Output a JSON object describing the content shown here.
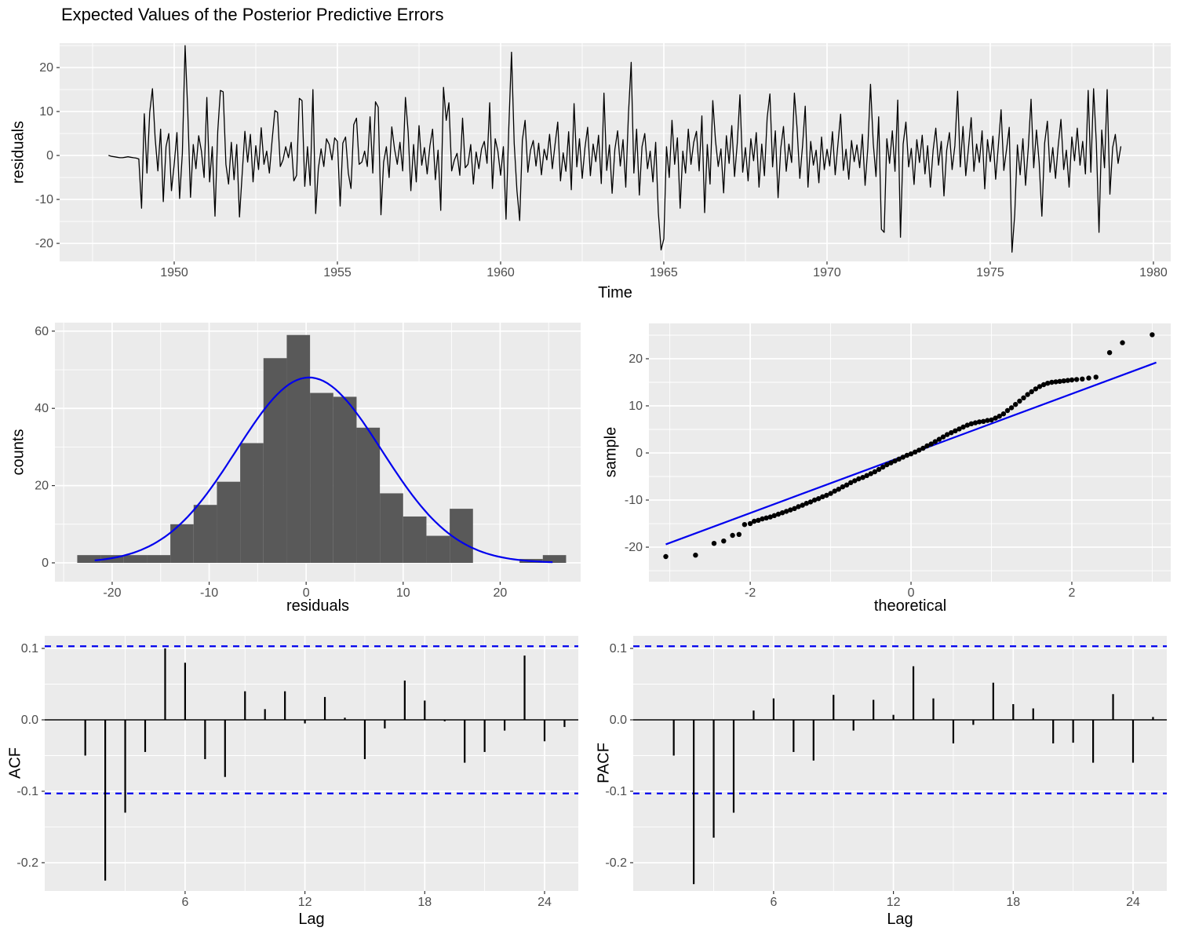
{
  "title": "Expected Values of the Posterior Predictive Errors",
  "colors": {
    "panel_bg": "#EBEBEB",
    "grid": "#FFFFFF",
    "series_line": "#000000",
    "bar_fill": "#595959",
    "blue": "#0000EE",
    "axis_text": "#4D4D4D",
    "tick_mark": "#333333",
    "label_text": "#000000"
  },
  "chart_data": [
    {
      "id": "ts",
      "type": "line",
      "title": "Expected Values of the Posterior Predictive Errors",
      "xlabel": "Time",
      "ylabel": "residuals",
      "xlim": [
        1946.49,
        1980.53
      ],
      "ylim": [
        -24.1,
        25.55
      ],
      "x_ticks": {
        "values": [
          1950,
          1955,
          1960,
          1965,
          1970,
          1975,
          1980
        ],
        "labels": [
          "1950",
          "1955",
          "1960",
          "1965",
          "1970",
          "1975",
          "1980"
        ]
      },
      "y_ticks": {
        "values": [
          -20,
          -10,
          0,
          10,
          20
        ],
        "labels": [
          "-20",
          "-10",
          "0",
          "10",
          "20"
        ]
      },
      "start": 1948,
      "frequency": 12,
      "values": [
        0.0,
        -0.2,
        -0.3,
        -0.4,
        -0.5,
        -0.5,
        -0.4,
        -0.3,
        -0.4,
        -0.5,
        -0.6,
        -0.8,
        -12.0,
        9.5,
        -4.0,
        9.8,
        15.2,
        4.0,
        -3.5,
        6.0,
        -10.5,
        2.0,
        5.0,
        -8.0,
        -2.0,
        5.2,
        -9.8,
        0.5,
        25.0,
        10.0,
        -9.5,
        2.5,
        -3.0,
        4.5,
        1.0,
        -5.0,
        13.2,
        -6.0,
        2.0,
        -13.8,
        5.5,
        14.8,
        14.5,
        -2.0,
        -6.5,
        3.0,
        -5.5,
        2.5,
        -14.0,
        -4.0,
        5.5,
        -1.5,
        4.8,
        -6.0,
        2.2,
        -3.2,
        6.3,
        -2.0,
        1.0,
        -4.0,
        3.5,
        10.2,
        9.8,
        -2.5,
        -1.0,
        2.0,
        -0.5,
        3.0,
        -5.8,
        -4.5,
        13.0,
        12.5,
        -7.0,
        2.0,
        -6.8,
        15.0,
        -13.2,
        -3.0,
        1.5,
        -2.5,
        3.8,
        2.5,
        -1.0,
        4.0,
        3.2,
        -11.5,
        2.8,
        4.2,
        -4.0,
        -7.5,
        7.0,
        8.5,
        -2.0,
        -1.5,
        1.0,
        -2.5,
        8.8,
        -4.0,
        12.2,
        11.0,
        -13.5,
        -1.5,
        2.0,
        -5.0,
        6.5,
        1.5,
        -2.0,
        3.0,
        -3.5,
        13.2,
        5.5,
        -8.0,
        2.5,
        -6.0,
        6.8,
        -2.2,
        1.8,
        -4.2,
        2.2,
        6.0,
        -5.5,
        1.2,
        -12.5,
        15.5,
        8.0,
        12.0,
        -3.5,
        -1.0,
        0.5,
        -4.5,
        8.5,
        -2.8,
        -2.0,
        2.5,
        -6.5,
        0.8,
        -3.0,
        1.5,
        3.2,
        -1.8,
        12.0,
        -7.5,
        3.8,
        1.0,
        -4.5,
        2.0,
        -14.5,
        6.2,
        23.5,
        2.8,
        -8.0,
        -14.8,
        3.5,
        8.0,
        -3.8,
        1.2,
        3.4,
        -2.4,
        2.8,
        -4.4,
        1.4,
        -1.0,
        4.8,
        -3.0,
        2.4,
        7.6,
        -5.8,
        0.6,
        -3.6,
        5.4,
        -7.8,
        11.8,
        -2.6,
        3.8,
        -5.2,
        1.8,
        6.4,
        -4.6,
        2.6,
        -1.4,
        4.6,
        -6.4,
        14.2,
        -3.4,
        2.4,
        -8.6,
        1.4,
        5.6,
        -2.4,
        3.6,
        -7.2,
        9.4,
        21.2,
        -4.0,
        6.0,
        -9.0,
        2.0,
        5.0,
        -3.0,
        1.0,
        -6.0,
        3.0,
        -13.0,
        -21.5,
        -19.0,
        2.0,
        -5.0,
        8.0,
        -2.0,
        4.0,
        -12.0,
        1.0,
        -4.0,
        6.0,
        -2.0,
        3.0,
        5.5,
        -3.5,
        9.0,
        -13.0,
        2.5,
        -6.5,
        12.5,
        3.5,
        -2.5,
        1.5,
        -8.5,
        4.5,
        -1.8,
        6.8,
        -4.8,
        2.8,
        13.8,
        -3.8,
        1.8,
        -5.8,
        3.8,
        -1.2,
        5.2,
        -7.2,
        2.6,
        -4.6,
        8.6,
        14.0,
        -2.6,
        5.6,
        -9.6,
        1.6,
        6.6,
        -3.6,
        2.6,
        -1.6,
        14.2,
        6.2,
        -5.2,
        2.2,
        11.2,
        -7.2,
        3.2,
        -2.2,
        1.2,
        -6.2,
        4.2,
        -3.2,
        1.4,
        -2.4,
        5.4,
        -4.4,
        2.4,
        9.4,
        -3.4,
        1.4,
        -5.4,
        3.4,
        -1.4,
        2.4,
        -2.8,
        4.8,
        -6.8,
        1.8,
        16.2,
        2.8,
        -4.8,
        8.8,
        -16.8,
        -17.5,
        3.8,
        -1.8,
        5.6,
        -3.6,
        12.6,
        -18.6,
        2.6,
        7.6,
        -2.6,
        1.6,
        -6.6,
        3.6,
        -1.6,
        4.6,
        -4.2,
        2.2,
        -7.2,
        1.2,
        6.2,
        -2.2,
        3.2,
        -9.2,
        1.2,
        5.2,
        -3.2,
        2.2,
        14.6,
        -2.6,
        6.6,
        -4.6,
        1.6,
        8.6,
        -3.6,
        2.6,
        -1.6,
        5.6,
        -7.6,
        3.6,
        -1.4,
        4.4,
        -5.4,
        2.4,
        10.4,
        -3.4,
        1.4,
        6.4,
        -22.0,
        -13.4,
        2.4,
        -4.4,
        3.8,
        -6.8,
        1.8,
        12.8,
        -2.8,
        5.8,
        -1.8,
        -13.8,
        2.8,
        7.8,
        -3.8,
        1.8,
        -5.2,
        2.2,
        8.2,
        -3.2,
        1.2,
        -7.2,
        4.2,
        -1.2,
        6.2,
        -2.2,
        3.2,
        -4.2,
        14.8,
        -3.8,
        15.2,
        2.8,
        -17.5,
        5.8,
        -2.8,
        15.0,
        -8.8,
        1.8,
        4.8,
        -1.8,
        2.0
      ]
    },
    {
      "id": "hist",
      "type": "bar",
      "xlabel": "residuals",
      "ylabel": "counts",
      "xlim": [
        -25.9,
        28.3
      ],
      "ylim": [
        -4.88,
        62.2
      ],
      "x_ticks": {
        "values": [
          -20,
          -10,
          0,
          10,
          20
        ],
        "labels": [
          "-20",
          "-10",
          "0",
          "10",
          "20"
        ]
      },
      "y_ticks": {
        "values": [
          0,
          20,
          40,
          60
        ],
        "labels": [
          "0",
          "20",
          "40",
          "60"
        ]
      },
      "bin_start": -23.6,
      "bin_width": 2.4,
      "counts": [
        2,
        2,
        2,
        2,
        10,
        15,
        21,
        31,
        53,
        59,
        44,
        43,
        35,
        18,
        12,
        7,
        14,
        0,
        0,
        1,
        2
      ],
      "normal_curve": {
        "peak": 48,
        "mean": 0.3,
        "sd": 7.5,
        "from": -21.8,
        "to": 25.6
      }
    },
    {
      "id": "qq",
      "type": "scatter",
      "xlabel": "theoretical",
      "ylabel": "sample",
      "xlim": [
        -3.26,
        3.23
      ],
      "ylim": [
        -27.33,
        27.5
      ],
      "x_ticks": {
        "values": [
          -2,
          0,
          2
        ],
        "labels": [
          "-2",
          "0",
          "2"
        ]
      },
      "y_ticks": {
        "values": [
          -20,
          -10,
          0,
          10,
          20
        ],
        "labels": [
          "-20",
          "-10",
          "0",
          "10",
          "20"
        ]
      },
      "ref_line": {
        "x1": -3.05,
        "y1": -19.4,
        "x2": 3.05,
        "y2": 19.2
      },
      "points": [
        [
          -3.05,
          -22
        ],
        [
          -2.68,
          -21.7
        ],
        [
          -2.45,
          -19.2
        ],
        [
          -2.33,
          -18.7
        ],
        [
          -2.22,
          -17.5
        ],
        [
          -2.14,
          -17.3
        ],
        [
          -2.07,
          -15.2
        ],
        [
          -2,
          -15
        ],
        [
          -1.95,
          -14.5
        ],
        [
          -1.9,
          -14.3
        ],
        [
          -1.85,
          -14
        ],
        [
          -1.8,
          -13.8
        ],
        [
          -1.75,
          -13.6
        ],
        [
          -1.7,
          -13.3
        ],
        [
          -1.65,
          -13
        ],
        [
          -1.6,
          -12.7
        ],
        [
          -1.55,
          -12.4
        ],
        [
          -1.5,
          -12.1
        ],
        [
          -1.45,
          -11.8
        ],
        [
          -1.4,
          -11.4
        ],
        [
          -1.35,
          -11.1
        ],
        [
          -1.3,
          -10.7
        ],
        [
          -1.25,
          -10.4
        ],
        [
          -1.2,
          -10
        ],
        [
          -1.15,
          -9.7
        ],
        [
          -1.1,
          -9.3
        ],
        [
          -1.05,
          -9
        ],
        [
          -1,
          -8.6
        ],
        [
          -0.95,
          -8.1
        ],
        [
          -0.9,
          -7.7
        ],
        [
          -0.85,
          -7.2
        ],
        [
          -0.8,
          -6.8
        ],
        [
          -0.75,
          -6.3
        ],
        [
          -0.7,
          -5.9
        ],
        [
          -0.65,
          -5.5
        ],
        [
          -0.6,
          -5.2
        ],
        [
          -0.55,
          -4.8
        ],
        [
          -0.5,
          -4.4
        ],
        [
          -0.45,
          -4
        ],
        [
          -0.4,
          -3.5
        ],
        [
          -0.35,
          -3
        ],
        [
          -0.3,
          -2.5
        ],
        [
          -0.25,
          -2.1
        ],
        [
          -0.2,
          -1.7
        ],
        [
          -0.15,
          -1.3
        ],
        [
          -0.1,
          -0.9
        ],
        [
          -0.05,
          -0.5
        ],
        [
          0,
          -0.2
        ],
        [
          0.05,
          0.2
        ],
        [
          0.1,
          0.6
        ],
        [
          0.15,
          1
        ],
        [
          0.2,
          1.5
        ],
        [
          0.25,
          1.9
        ],
        [
          0.3,
          2.4
        ],
        [
          0.35,
          2.9
        ],
        [
          0.4,
          3.4
        ],
        [
          0.45,
          3.9
        ],
        [
          0.5,
          4.3
        ],
        [
          0.55,
          4.7
        ],
        [
          0.6,
          5.1
        ],
        [
          0.65,
          5.5
        ],
        [
          0.7,
          5.9
        ],
        [
          0.75,
          6.2
        ],
        [
          0.8,
          6.4
        ],
        [
          0.85,
          6.6
        ],
        [
          0.9,
          6.7
        ],
        [
          0.95,
          6.9
        ],
        [
          1,
          7
        ],
        [
          1.05,
          7.4
        ],
        [
          1.1,
          7.8
        ],
        [
          1.15,
          8.3
        ],
        [
          1.2,
          9
        ],
        [
          1.25,
          9.6
        ],
        [
          1.3,
          10.3
        ],
        [
          1.35,
          11
        ],
        [
          1.4,
          11.7
        ],
        [
          1.45,
          12.4
        ],
        [
          1.5,
          13
        ],
        [
          1.55,
          13.6
        ],
        [
          1.6,
          14.1
        ],
        [
          1.65,
          14.5
        ],
        [
          1.7,
          14.8
        ],
        [
          1.75,
          15
        ],
        [
          1.8,
          15.1
        ],
        [
          1.85,
          15.2
        ],
        [
          1.9,
          15.3
        ],
        [
          1.95,
          15.4
        ],
        [
          2,
          15.5
        ],
        [
          2.06,
          15.6
        ],
        [
          2.13,
          15.7
        ],
        [
          2.21,
          15.9
        ],
        [
          2.3,
          16.1
        ],
        [
          2.47,
          21.3
        ],
        [
          2.63,
          23.4
        ],
        [
          3,
          25.1
        ]
      ]
    },
    {
      "id": "acf",
      "type": "bar",
      "xlabel": "Lag",
      "ylabel": "ACF",
      "xlim": [
        -1.03,
        25.69
      ],
      "ylim": [
        -0.2396,
        0.1176
      ],
      "x_ticks": {
        "values": [
          6,
          12,
          18,
          24
        ],
        "labels": [
          "6",
          "12",
          "18",
          "24"
        ]
      },
      "y_ticks": {
        "values": [
          0.1,
          0.0,
          -0.1,
          -0.2
        ],
        "labels": [
          "0.1",
          "0.0",
          "-0.1",
          "-0.2"
        ]
      },
      "conf_bound": 0.103,
      "lags": [
        1,
        2,
        3,
        4,
        5,
        6,
        7,
        8,
        9,
        10,
        11,
        12,
        13,
        14,
        15,
        16,
        17,
        18,
        19,
        20,
        21,
        22,
        23,
        24,
        25
      ],
      "values": [
        -0.05,
        -0.225,
        -0.13,
        -0.045,
        0.1,
        0.08,
        -0.055,
        -0.08,
        0.04,
        0.015,
        0.04,
        -0.005,
        0.032,
        0.003,
        -0.055,
        -0.012,
        0.055,
        0.027,
        -0.002,
        -0.06,
        -0.045,
        -0.015,
        0.09,
        -0.03,
        -0.01
      ]
    },
    {
      "id": "pacf",
      "type": "bar",
      "xlabel": "Lag",
      "ylabel": "PACF",
      "xlim": [
        -1.03,
        25.69
      ],
      "ylim": [
        -0.2396,
        0.1176
      ],
      "x_ticks": {
        "values": [
          6,
          12,
          18,
          24
        ],
        "labels": [
          "6",
          "12",
          "18",
          "24"
        ]
      },
      "y_ticks": {
        "values": [
          0.1,
          0.0,
          -0.1,
          -0.2
        ],
        "labels": [
          "0.1",
          "0.0",
          "-0.1",
          "-0.2"
        ]
      },
      "conf_bound": 0.103,
      "lags": [
        1,
        2,
        3,
        4,
        5,
        6,
        7,
        8,
        9,
        10,
        11,
        12,
        13,
        14,
        15,
        16,
        17,
        18,
        19,
        20,
        21,
        22,
        23,
        24,
        25
      ],
      "values": [
        -0.05,
        -0.23,
        -0.165,
        -0.13,
        0.013,
        0.03,
        -0.045,
        -0.057,
        0.035,
        -0.015,
        0.028,
        0.007,
        0.075,
        0.03,
        -0.033,
        -0.007,
        0.052,
        0.022,
        0.016,
        -0.033,
        -0.032,
        -0.06,
        0.036,
        -0.06,
        0.004
      ]
    }
  ]
}
